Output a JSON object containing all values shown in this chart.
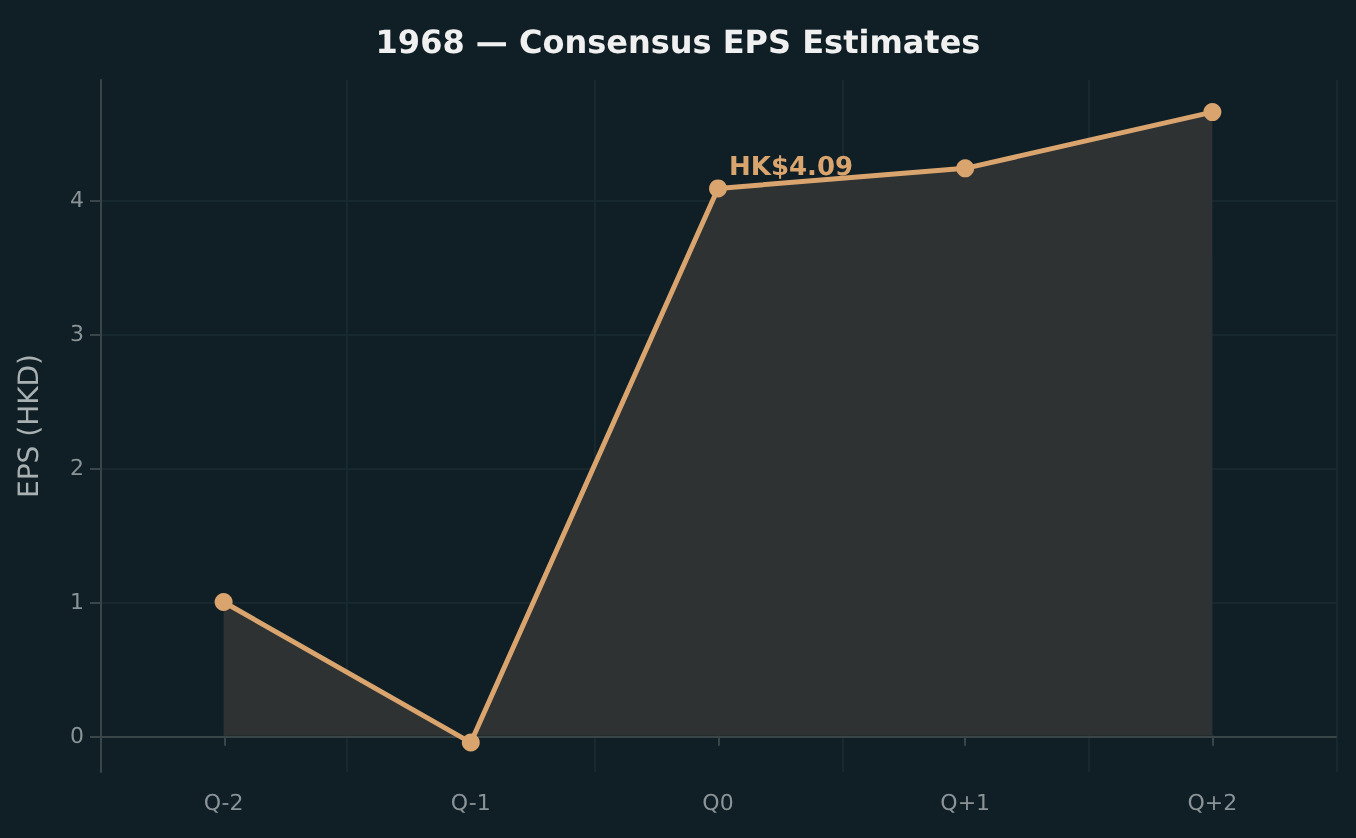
{
  "chart_data": {
    "type": "area",
    "title": "1968 — Consensus EPS Estimates",
    "ylabel": "EPS (HKD)",
    "categories": [
      "Q-2",
      "Q-1",
      "Q0",
      "Q+1",
      "Q+2"
    ],
    "series": [
      {
        "color": "#d9a46e",
        "values": [
          1.0,
          -0.05,
          4.09,
          4.24,
          4.66
        ]
      }
    ],
    "ylim": [
      -0.27,
      4.9
    ],
    "yticks": [
      0,
      1,
      2,
      3,
      4
    ],
    "grid": true,
    "marker": "circle",
    "line_style": "solid",
    "annotations": [
      {
        "text": "HK$4.09",
        "x": "Q0",
        "y": 4.09
      }
    ]
  }
}
